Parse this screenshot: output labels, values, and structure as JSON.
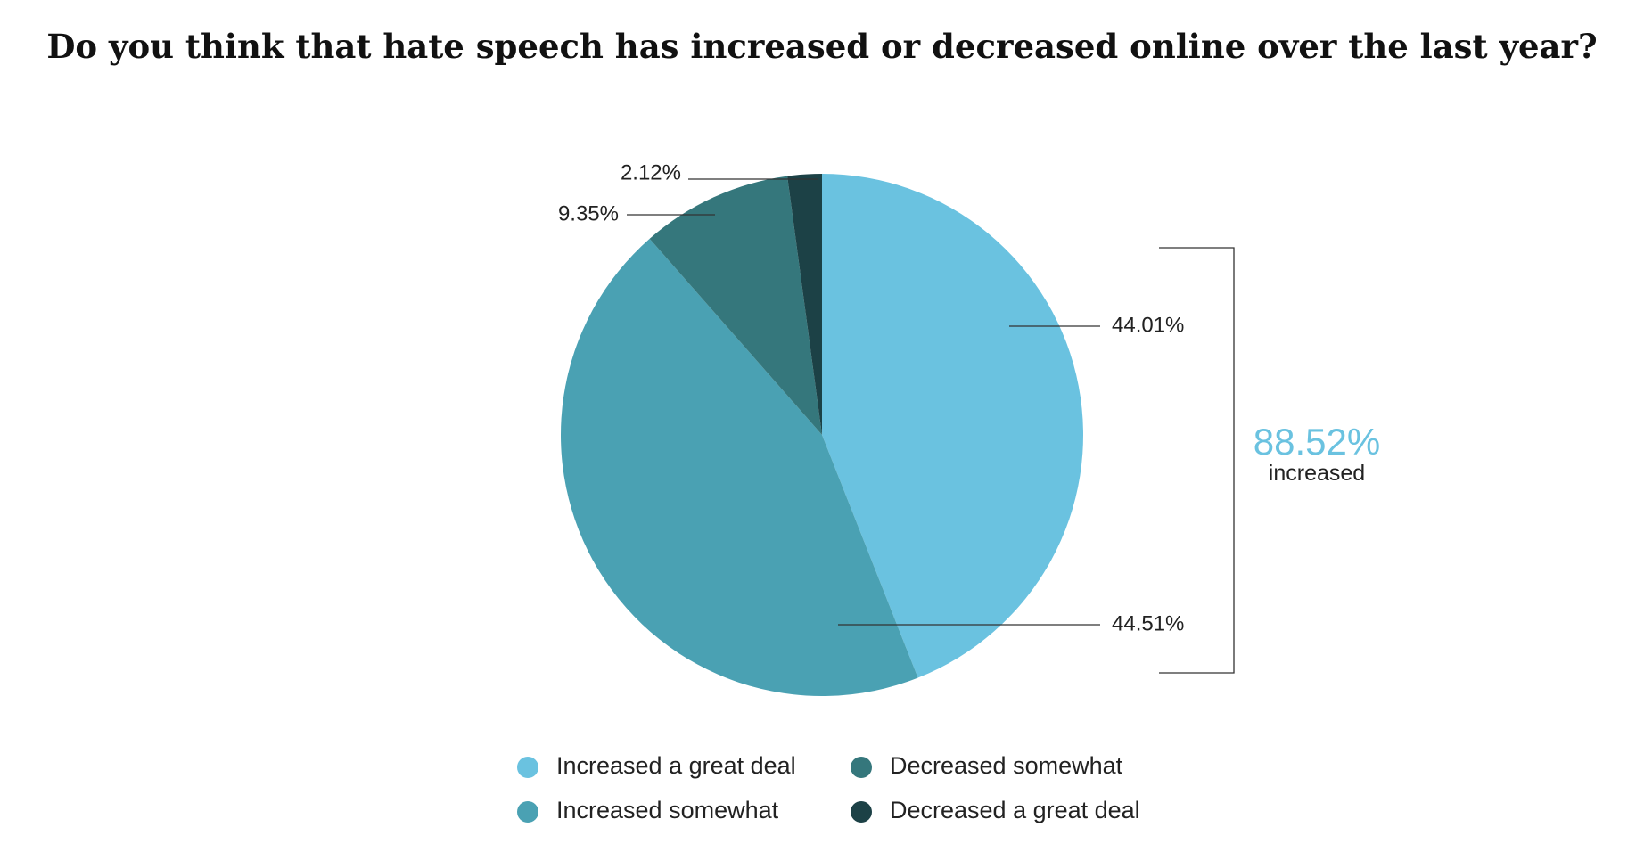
{
  "colors": {
    "increased_great_deal": "#6AC2E0",
    "increased_somewhat": "#4AA1B3",
    "decreased_somewhat": "#35777C",
    "decreased_great_deal": "#1C4146",
    "background": "#ffffff",
    "summary_accent": "#6AC2E0"
  },
  "chart_data": {
    "type": "pie",
    "title": "Do you think that hate speech has increased or decreased online over the last year?",
    "slices": [
      {
        "name": "Increased a great deal",
        "value": 44.01,
        "label": "44.01%",
        "color": "#6AC2E0"
      },
      {
        "name": "Increased somewhat",
        "value": 44.51,
        "label": "44.51%",
        "color": "#4AA1B3"
      },
      {
        "name": "Decreased somewhat",
        "value": 9.35,
        "label": "9.35%",
        "color": "#35777C"
      },
      {
        "name": "Decreased a great deal",
        "value": 2.12,
        "label": "2.12%",
        "color": "#1C4146"
      }
    ],
    "summary": {
      "value": "88.52%",
      "caption": "increased"
    },
    "legend": {
      "placement": "bottom",
      "items": [
        {
          "label": "Increased a great deal",
          "color": "#6AC2E0"
        },
        {
          "label": "Decreased somewhat",
          "color": "#35777C"
        },
        {
          "label": "Increased somewhat",
          "color": "#4AA1B3"
        },
        {
          "label": "Decreased a great deal",
          "color": "#1C4146"
        }
      ]
    }
  }
}
